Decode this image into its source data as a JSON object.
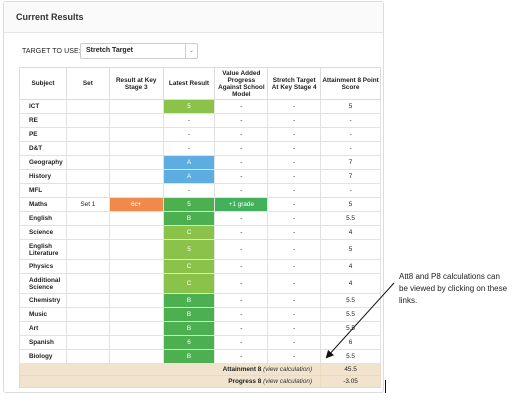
{
  "panel": {
    "title": "Current Results"
  },
  "target": {
    "label": "TARGET TO USE:",
    "selected": "Stretch Target",
    "arrow": "⌄"
  },
  "table": {
    "headers": {
      "subject": "Subject",
      "set": "Set",
      "ks3": "Result at Key Stage 3",
      "latest": "Latest Result",
      "value_added": "Value Added Progress Against School Model",
      "stretch": "Stretch Target At Key Stage 4",
      "att8": "Attainment 8 Point Score"
    },
    "rows": [
      {
        "subject": "ICT",
        "set": "",
        "ks3": "",
        "latest": "5",
        "va": "-",
        "stretch": "-",
        "att8": "5"
      },
      {
        "subject": "RE",
        "set": "",
        "ks3": "",
        "latest": "-",
        "va": "-",
        "stretch": "-",
        "att8": "-"
      },
      {
        "subject": "PE",
        "set": "",
        "ks3": "",
        "latest": "-",
        "va": "-",
        "stretch": "-",
        "att8": "-"
      },
      {
        "subject": "D&T",
        "set": "",
        "ks3": "",
        "latest": "-",
        "va": "-",
        "stretch": "-",
        "att8": "-"
      },
      {
        "subject": "Geography",
        "set": "",
        "ks3": "",
        "latest": "A",
        "va": "-",
        "stretch": "-",
        "att8": "7"
      },
      {
        "subject": "History",
        "set": "",
        "ks3": "",
        "latest": "A",
        "va": "-",
        "stretch": "-",
        "att8": "7"
      },
      {
        "subject": "MFL",
        "set": "",
        "ks3": "",
        "latest": "-",
        "va": "-",
        "stretch": "-",
        "att8": "-"
      },
      {
        "subject": "Maths",
        "set": "Set 1",
        "ks3": "6c+",
        "latest": "5",
        "va": "+1 grade",
        "stretch": "-",
        "att8": "5"
      },
      {
        "subject": "English",
        "set": "",
        "ks3": "",
        "latest": "B",
        "va": "-",
        "stretch": "-",
        "att8": "5.5"
      },
      {
        "subject": "Science",
        "set": "",
        "ks3": "",
        "latest": "C",
        "va": "-",
        "stretch": "-",
        "att8": "4"
      },
      {
        "subject": "English Literature",
        "set": "",
        "ks3": "",
        "latest": "5",
        "va": "-",
        "stretch": "-",
        "att8": "5"
      },
      {
        "subject": "Physics",
        "set": "",
        "ks3": "",
        "latest": "C",
        "va": "-",
        "stretch": "-",
        "att8": "4"
      },
      {
        "subject": "Additional Science",
        "set": "",
        "ks3": "",
        "latest": "C",
        "va": "-",
        "stretch": "-",
        "att8": "4"
      },
      {
        "subject": "Chemistry",
        "set": "",
        "ks3": "",
        "latest": "B",
        "va": "-",
        "stretch": "-",
        "att8": "5.5"
      },
      {
        "subject": "Music",
        "set": "",
        "ks3": "",
        "latest": "B",
        "va": "-",
        "stretch": "-",
        "att8": "5.5"
      },
      {
        "subject": "Art",
        "set": "",
        "ks3": "",
        "latest": "B",
        "va": "-",
        "stretch": "-",
        "att8": "5.5"
      },
      {
        "subject": "Spanish",
        "set": "",
        "ks3": "",
        "latest": "6",
        "va": "-",
        "stretch": "-",
        "att8": "6"
      },
      {
        "subject": "Biology",
        "set": "",
        "ks3": "",
        "latest": "B",
        "va": "-",
        "stretch": "-",
        "att8": "5.5"
      }
    ],
    "summary": {
      "att8_label": "Attainment 8",
      "att8_link": "(view calculation)",
      "att8_value": "45.5",
      "p8_label": "Progress 8",
      "p8_link": "(view calculation)",
      "p8_value": "-3.05"
    }
  },
  "annotation": {
    "text": "Att8 and P8 calculations can be viewed by clicking on these links."
  },
  "colors": {
    "green": "#8bc34a",
    "blue": "#5dade2",
    "dark_green": "#4caf50",
    "orange": "#f08a4b",
    "va_green": "#43b15b",
    "summary_bg": "#f2e3cf"
  }
}
